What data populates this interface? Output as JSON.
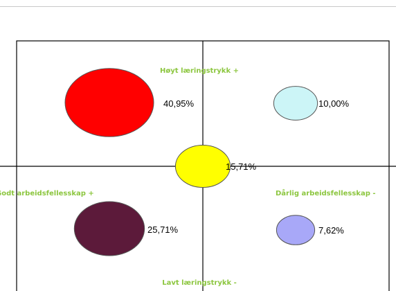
{
  "chart_data": {
    "type": "scatter",
    "title": "",
    "axis_labels": {
      "top": "Høyt læringstrykk +",
      "bottom": "Lavt læringstrykk -",
      "left": "Godt arbeidsfellesskap +",
      "right": "Dårlig arbeidsfellesskap -"
    },
    "axis_label_color": "#8cc63f",
    "grid": false,
    "points": [
      {
        "label": "40,95%",
        "value": 40.95,
        "quadrant": "top-left",
        "color": "#ff0000"
      },
      {
        "label": "10,00%",
        "value": 10.0,
        "quadrant": "top-right",
        "color": "#ccf5f7"
      },
      {
        "label": "15,71%",
        "value": 15.71,
        "quadrant": "center",
        "color": "#ffff00"
      },
      {
        "label": "25,71%",
        "value": 25.71,
        "quadrant": "bottom-left",
        "color": "#5c1a3a"
      },
      {
        "label": "7,62%",
        "value": 7.62,
        "quadrant": "bottom-right",
        "color": "#a8a8f8"
      }
    ]
  }
}
